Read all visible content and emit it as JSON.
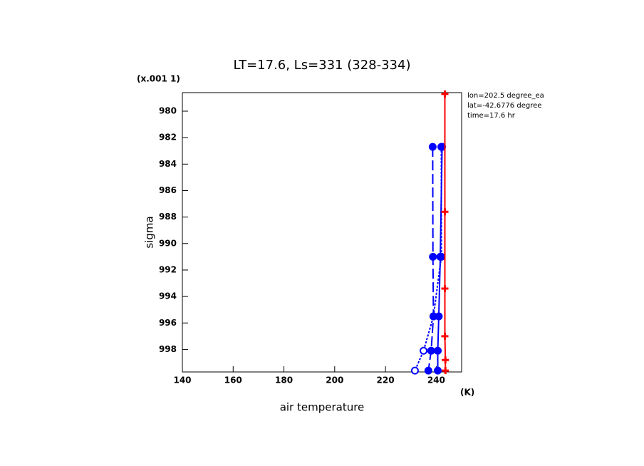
{
  "chart_data": {
    "type": "line",
    "title": "LT=17.6, Ls=331 (328-334)",
    "x_label": "air temperature",
    "x_units": "(K)",
    "y_label": "sigma",
    "y_scale_note": "(x.001 1)",
    "annotations": [
      "lon=202.5 degree_ea",
      "lat=-42.6776 degree",
      "time=17.6 hr"
    ],
    "xlim": [
      140,
      250
    ],
    "ylim": [
      978.6,
      999.7
    ],
    "y_inverted": true,
    "xticks": [
      140,
      160,
      180,
      200,
      220,
      240
    ],
    "yticks": [
      980,
      982,
      984,
      986,
      988,
      990,
      992,
      994,
      996,
      998
    ],
    "series": [
      {
        "color": "#0000ff",
        "dash": "3,2",
        "marker": "open",
        "x": [
          242.0,
          242.0,
          238.9,
          235.0,
          231.6
        ],
        "y": [
          982.7,
          991.0,
          995.5,
          998.1,
          999.6
        ]
      },
      {
        "color": "#0000ff",
        "dash": "14,5",
        "marker": "filled",
        "x": [
          238.6,
          238.7,
          238.9,
          238.0,
          236.9
        ],
        "y": [
          982.7,
          991.0,
          995.5,
          998.1,
          999.6
        ]
      },
      {
        "color": "#0000ff",
        "dash": "none",
        "marker": "filled",
        "x": [
          242.3,
          241.6,
          241.0,
          240.6,
          240.6
        ],
        "y": [
          982.7,
          991.0,
          995.5,
          998.1,
          999.6
        ]
      },
      {
        "color": "#ff0000",
        "dash": "none",
        "marker": "cross",
        "x": [
          243.4,
          243.4,
          243.4,
          243.4,
          243.6,
          243.6
        ],
        "y": [
          978.7,
          987.6,
          993.4,
          997.0,
          998.8,
          999.6
        ]
      }
    ]
  }
}
